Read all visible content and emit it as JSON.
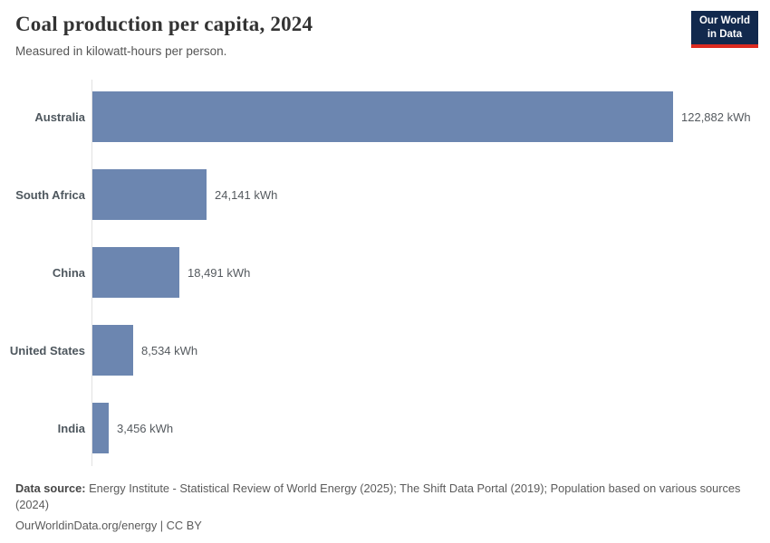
{
  "header": {
    "title": "Coal production per capita, 2024",
    "subtitle": "Measured in kilowatt-hours per person.",
    "logo": {
      "line1": "Our World",
      "line2": "in Data",
      "bg_color": "#12294d",
      "accent_color": "#dc2a20"
    }
  },
  "chart_data": {
    "type": "bar",
    "orientation": "horizontal",
    "title": "Coal production per capita, 2024",
    "subtitle": "Measured in kilowatt-hours per person.",
    "unit": "kWh",
    "categories": [
      "Australia",
      "South Africa",
      "China",
      "United States",
      "India"
    ],
    "values": [
      122882,
      24141,
      18491,
      8534,
      3456
    ],
    "value_labels": [
      "122,882 kWh",
      "24,141 kWh",
      "18,491 kWh",
      "8,534 kWh",
      "3,456 kWh"
    ],
    "xlim": [
      0,
      122882
    ],
    "grid": false,
    "legend": "none",
    "bar_color": "#6c86b0",
    "axis_color": "#e2e2e2"
  },
  "footer": {
    "data_source_label": "Data source:",
    "data_source_text": " Energy Institute - Statistical Review of World Energy (2025); The Shift Data Portal (2019); Population based on various sources (2024)",
    "link_line": "OurWorldinData.org/energy | CC BY"
  }
}
